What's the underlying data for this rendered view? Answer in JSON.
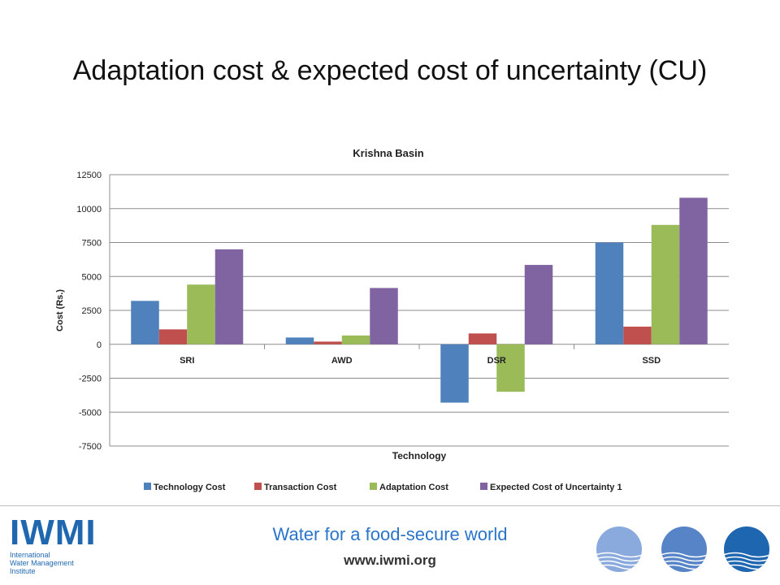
{
  "slide": {
    "title": "Adaptation cost & expected cost of uncertainty (CU)"
  },
  "footer": {
    "logo_mark": "IWMI",
    "logo_lines": [
      "International",
      "Water Management",
      "Institute"
    ],
    "tagline": "Water for a food-secure world",
    "website": "www.iwmi.org",
    "globe_colors": [
      "#8aa9dc",
      "#5684c6",
      "#1f66b0"
    ]
  },
  "chart_data": {
    "type": "bar",
    "title": "Krishna Basin",
    "xlabel": "Technology",
    "ylabel": "Cost (Rs.)",
    "categories": [
      "SRI",
      "AWD",
      "DSR",
      "SSD"
    ],
    "ylim": [
      -7500,
      12500
    ],
    "yticks": [
      12500,
      10000,
      7500,
      5000,
      2500,
      0,
      -2500,
      -5000,
      -7500
    ],
    "grid": true,
    "legend_position": "bottom",
    "series": [
      {
        "name": "Technology Cost",
        "color": "#4f81bd",
        "values": [
          3200,
          500,
          -4300,
          7500
        ]
      },
      {
        "name": "Transaction Cost",
        "color": "#c0504d",
        "values": [
          1100,
          200,
          800,
          1300
        ]
      },
      {
        "name": "Adaptation Cost",
        "color": "#9bbb59",
        "values": [
          4400,
          650,
          -3500,
          8800
        ]
      },
      {
        "name": "Expected Cost of Uncertainty 1",
        "color": "#8064a2",
        "values": [
          7000,
          4150,
          5850,
          10800
        ]
      }
    ]
  }
}
